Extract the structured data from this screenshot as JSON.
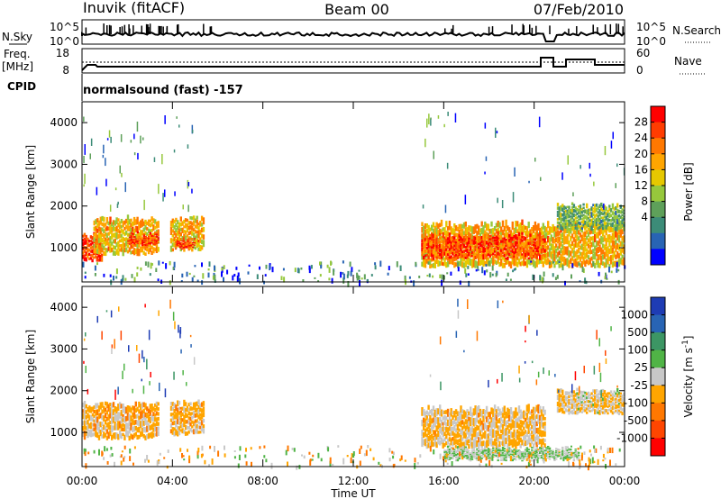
{
  "header": {
    "title_left": "Inuvik (fitACF)",
    "title_center": "Beam 00",
    "title_right": "07/Feb/2010"
  },
  "top_panel": {
    "left_label": "N.Sky",
    "right_label": "N.Search",
    "ticks_left": [
      "10^5",
      "10^0"
    ],
    "ticks_right": [
      "10^5",
      "10^0"
    ]
  },
  "freq_panel": {
    "left_label": "Freq.",
    "left_unit": "[MHz]",
    "right_label": "Nave",
    "ticks_left": [
      "18",
      "8"
    ],
    "ticks_right": [
      "60",
      "0"
    ]
  },
  "cpid": {
    "label": "CPID",
    "text": "normalsound (fast) -157"
  },
  "power_panel": {
    "ylabel": "Slant Range [km]",
    "yticks": [
      "4000",
      "3000",
      "2000",
      "1000"
    ],
    "colorbar_label": "Power [dB]",
    "colorbar_ticks": [
      "28",
      "24",
      "20",
      "16",
      "12",
      "8",
      "4"
    ],
    "colorbar_colors": [
      "#ff0000",
      "#ff3c00",
      "#ff7800",
      "#ffa500",
      "#e6c800",
      "#96c83c",
      "#5ea05a",
      "#3c8c78",
      "#2864b4",
      "#0000ff"
    ]
  },
  "velocity_panel": {
    "ylabel": "Slant Range [km]",
    "yticks": [
      "4000",
      "3000",
      "2000",
      "1000"
    ],
    "colorbar_label": "Velocity [m s",
    "colorbar_label_sup": "-1",
    "colorbar_label_end": "]",
    "colorbar_ticks": [
      "1000",
      "500",
      "100",
      "25",
      "-25",
      "-100",
      "-500",
      "-1000"
    ],
    "colorbar_colors": [
      "#1e3cb4",
      "#2864b4",
      "#3c9664",
      "#50b446",
      "#c8c8c8",
      "#ffa500",
      "#ff7800",
      "#ff4600",
      "#ff0000"
    ]
  },
  "xaxis": {
    "ticks": [
      "00:00",
      "04:00",
      "08:00",
      "12:00",
      "16:00",
      "20:00",
      "00:00"
    ],
    "label": "Time UT"
  },
  "chart_data": {
    "type": "heatmap",
    "title": "Inuvik (fitACF)  Beam 00  07/Feb/2010",
    "xlabel": "Time UT",
    "ylabel": "Slant Range [km]",
    "xlim": [
      0,
      24
    ],
    "ylim": [
      180,
      4500
    ],
    "series": [
      {
        "name": "Power [dB]",
        "clim": [
          0,
          32
        ],
        "regions": [
          {
            "t0": 0.0,
            "t1": 0.9,
            "r0": 650,
            "r1": 1400,
            "value": 28
          },
          {
            "t0": 0.5,
            "t1": 3.4,
            "r0": 800,
            "r1": 1800,
            "value": 20
          },
          {
            "t0": 2.0,
            "t1": 3.4,
            "r0": 1000,
            "r1": 1400,
            "value": 28
          },
          {
            "t0": 3.9,
            "t1": 5.4,
            "r0": 900,
            "r1": 1800,
            "value": 20
          },
          {
            "t0": 4.1,
            "t1": 5.0,
            "r0": 950,
            "r1": 1300,
            "value": 28
          },
          {
            "t0": 15.0,
            "t1": 24.0,
            "r0": 500,
            "r1": 1700,
            "value": 20
          },
          {
            "t0": 15.0,
            "t1": 20.5,
            "r0": 700,
            "r1": 1400,
            "value": 28
          },
          {
            "t0": 21.0,
            "t1": 24.0,
            "r0": 1400,
            "r1": 2100,
            "value": 12
          }
        ]
      },
      {
        "name": "Velocity [m s-1]",
        "clim": [
          -1000,
          1000
        ],
        "regions": [
          {
            "t0": 0.0,
            "t1": 3.4,
            "r0": 800,
            "r1": 1800,
            "value": -200
          },
          {
            "t0": 3.9,
            "t1": 5.4,
            "r0": 900,
            "r1": 1800,
            "value": -200
          },
          {
            "t0": 15.0,
            "t1": 20.5,
            "r0": 600,
            "r1": 1700,
            "value": -150
          },
          {
            "t0": 16.0,
            "t1": 22.0,
            "r0": 300,
            "r1": 700,
            "value": 100
          },
          {
            "t0": 21.0,
            "t1": 24.0,
            "r0": 1400,
            "r1": 2100,
            "value": -100
          }
        ]
      }
    ]
  }
}
